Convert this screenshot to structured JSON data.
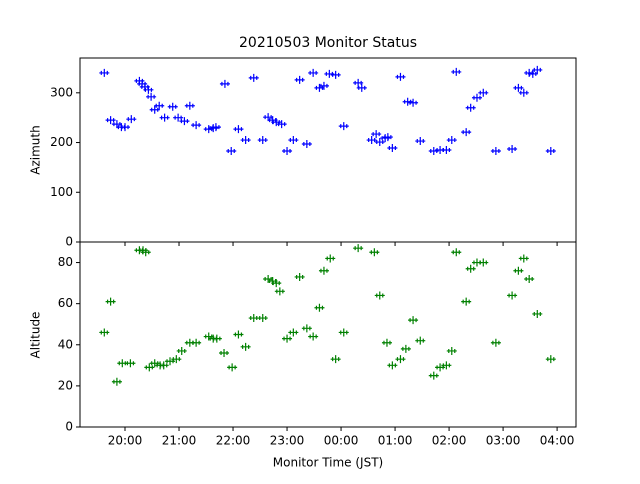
{
  "chart_data": [
    {
      "type": "scatter",
      "title": "20210503 Monitor Status",
      "ylabel": "Azimuth",
      "color": "#0000ff",
      "ylim": [
        0,
        370
      ],
      "yticks": [
        0,
        100,
        200,
        300
      ],
      "x": [
        "19:37",
        "19:44",
        "19:51",
        "19:56",
        "20:00",
        "20:07",
        "20:16",
        "20:19",
        "20:22",
        "20:26",
        "20:29",
        "20:33",
        "20:38",
        "20:44",
        "20:53",
        "20:59",
        "21:06",
        "21:12",
        "21:19",
        "21:33",
        "21:38",
        "21:41",
        "21:51",
        "21:58",
        "22:06",
        "22:14",
        "22:23",
        "22:33",
        "22:39",
        "22:44",
        "22:48",
        "22:54",
        "23:00",
        "23:07",
        "23:14",
        "23:22",
        "23:29",
        "23:36",
        "23:41",
        "23:47",
        "23:54",
        "00:03",
        "00:19",
        "00:23",
        "00:34",
        "00:39",
        "00:43",
        "00:49",
        "00:52",
        "00:57",
        "01:06",
        "01:14",
        "01:20",
        "01:28",
        "01:43",
        "01:50",
        "01:57",
        "02:03",
        "02:08",
        "02:19",
        "02:24",
        "02:31",
        "02:38",
        "02:52",
        "03:10",
        "03:17",
        "03:23",
        "03:29",
        "03:33",
        "03:38",
        "03:53"
      ],
      "values": [
        340,
        245,
        237,
        231,
        231,
        247,
        324,
        318,
        312,
        306,
        292,
        266,
        274,
        250,
        272,
        250,
        243,
        274,
        235,
        227,
        229,
        231,
        318,
        183,
        227,
        205,
        330,
        205,
        251,
        245,
        241,
        237,
        183,
        205,
        326,
        197,
        340,
        310,
        314,
        338,
        336,
        233,
        320,
        310,
        205,
        217,
        201,
        209,
        211,
        189,
        332,
        282,
        280,
        203,
        183,
        185,
        185,
        205,
        342,
        221,
        270,
        290,
        300,
        183,
        187,
        310,
        300,
        340,
        338,
        346,
        183
      ]
    },
    {
      "type": "scatter",
      "ylabel": "Altitude",
      "xlabel": "Monitor Time (JST)",
      "color": "#008000",
      "xlim": [
        "19:10",
        "04:21"
      ],
      "xticks": [
        "20:00",
        "21:00",
        "22:00",
        "23:00",
        "00:00",
        "01:00",
        "02:00",
        "03:00",
        "04:00"
      ],
      "ylim": [
        0,
        90
      ],
      "yticks": [
        0,
        20,
        40,
        60,
        80
      ],
      "x": [
        "19:37",
        "19:44",
        "19:51",
        "19:57",
        "20:06",
        "20:16",
        "20:20",
        "20:23",
        "20:27",
        "20:33",
        "20:39",
        "20:43",
        "20:50",
        "20:57",
        "21:03",
        "21:12",
        "21:19",
        "21:33",
        "21:38",
        "21:42",
        "21:50",
        "21:59",
        "22:06",
        "22:14",
        "22:23",
        "22:33",
        "22:39",
        "22:44",
        "22:48",
        "22:52",
        "23:00",
        "23:07",
        "23:14",
        "23:22",
        "23:29",
        "23:36",
        "23:41",
        "23:48",
        "23:54",
        "00:03",
        "00:19",
        "00:37",
        "00:43",
        "00:51",
        "00:57",
        "01:06",
        "01:12",
        "01:20",
        "01:28",
        "01:43",
        "01:50",
        "01:57",
        "02:03",
        "02:08",
        "02:19",
        "02:24",
        "02:31",
        "02:38",
        "02:52",
        "03:10",
        "03:17",
        "03:23",
        "03:29",
        "03:38",
        "03:53"
      ],
      "values": [
        46,
        61,
        22,
        31,
        31,
        86,
        86,
        85,
        29,
        31,
        30,
        30,
        32,
        33,
        37,
        41,
        41,
        44,
        43,
        43,
        36,
        29,
        45,
        39,
        53,
        53,
        72,
        71,
        70,
        66,
        43,
        46,
        73,
        48,
        44,
        58,
        76,
        82,
        33,
        46,
        87,
        85,
        64,
        41,
        30,
        33,
        38,
        52,
        42,
        25,
        29,
        30,
        37,
        85,
        61,
        77,
        80,
        80,
        41,
        64,
        76,
        82,
        72,
        55,
        33
      ]
    }
  ]
}
